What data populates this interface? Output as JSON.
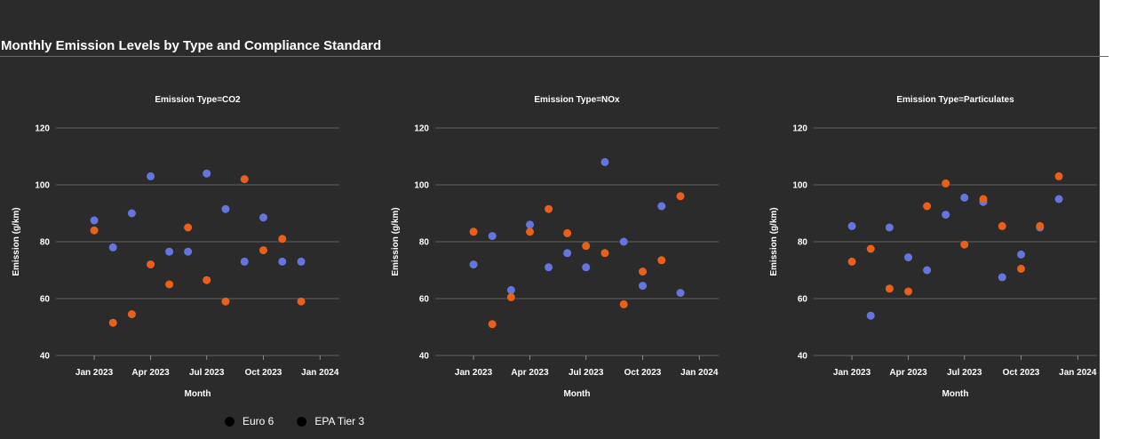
{
  "chart_data": {
    "type": "scatter",
    "title": "Monthly Emission Levels by Type and Compliance Standard",
    "xlabel": "Month",
    "ylabel": "Emission (g/km)",
    "ylim": [
      40,
      120
    ],
    "yticks": [
      40,
      60,
      80,
      100,
      120
    ],
    "xticks": [
      "Jan 2023",
      "Apr 2023",
      "Jul 2023",
      "Oct 2023",
      "Jan 2024"
    ],
    "months": [
      "2023-01",
      "2023-02",
      "2023-03",
      "2023-04",
      "2023-05",
      "2023-06",
      "2023-07",
      "2023-08",
      "2023-09",
      "2023-10",
      "2023-11",
      "2023-12"
    ],
    "grid": true,
    "legend": {
      "placement": "bottom",
      "entries": [
        "Euro 6",
        "EPA Tier 3"
      ]
    },
    "colors": {
      "Euro 6": "#6675de",
      "EPA Tier 3": "#e8601c"
    },
    "facets": [
      {
        "label": "Emission Type=CO2",
        "series": [
          {
            "name": "Euro 6",
            "values": [
              87.5,
              78,
              90,
              103,
              76.5,
              76.5,
              104,
              91.5,
              73,
              88.5,
              73,
              73
            ]
          },
          {
            "name": "EPA Tier 3",
            "values": [
              84,
              51.5,
              54.5,
              72,
              65,
              85,
              66.5,
              59,
              102,
              77,
              81,
              59
            ]
          }
        ]
      },
      {
        "label": "Emission Type=NOx",
        "series": [
          {
            "name": "Euro 6",
            "values": [
              72,
              82,
              63,
              86,
              71,
              76,
              71,
              108,
              80,
              64.5,
              92.5,
              62
            ]
          },
          {
            "name": "EPA Tier 3",
            "values": [
              83.5,
              51,
              60.5,
              83.5,
              91.5,
              83,
              78.5,
              76,
              58,
              69.5,
              73.5,
              96
            ]
          }
        ]
      },
      {
        "label": "Emission Type=Particulates",
        "series": [
          {
            "name": "Euro 6",
            "values": [
              85.5,
              54,
              85,
              74.5,
              70,
              89.5,
              95.5,
              94,
              67.5,
              75.5,
              85,
              95
            ]
          },
          {
            "name": "EPA Tier 3",
            "values": [
              73,
              77.5,
              63.5,
              62.5,
              92.5,
              100.5,
              79,
              95,
              85.5,
              70.5,
              85.5,
              103
            ]
          }
        ]
      }
    ]
  }
}
